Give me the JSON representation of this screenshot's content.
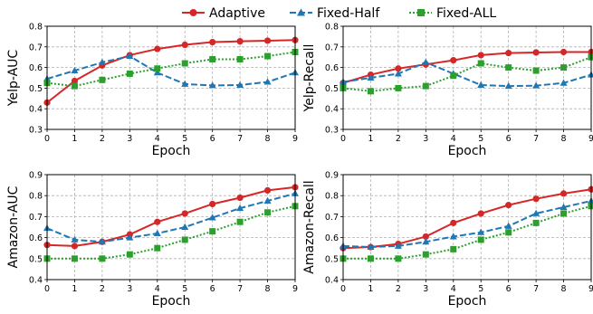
{
  "legend": {
    "placement": "top-center",
    "items": [
      {
        "label": "Adaptive",
        "color": "#d62728",
        "marker": "circle"
      },
      {
        "label": "Fixed-Half",
        "color": "#1f77b4",
        "marker": "triangle"
      },
      {
        "label": "Fixed-ALL",
        "color": "#2ca02c",
        "marker": "square"
      }
    ]
  },
  "chart_data": [
    {
      "type": "line",
      "xlabel": "Epoch",
      "ylabel": "Yelp-AUC",
      "x": [
        0,
        1,
        2,
        3,
        4,
        5,
        6,
        7,
        8,
        9
      ],
      "xticks": [
        0,
        1,
        2,
        3,
        4,
        5,
        6,
        7,
        8,
        9
      ],
      "ylim": [
        0.3,
        0.8
      ],
      "yticks": [
        0.3,
        0.4,
        0.5,
        0.6,
        0.7,
        0.8
      ],
      "grid": true,
      "series": [
        {
          "name": "Adaptive",
          "values": [
            0.43,
            0.535,
            0.61,
            0.66,
            0.69,
            0.71,
            0.723,
            0.727,
            0.73,
            0.733
          ]
        },
        {
          "name": "Fixed-Half",
          "values": [
            0.545,
            0.585,
            0.625,
            0.655,
            0.575,
            0.52,
            0.513,
            0.515,
            0.53,
            0.575
          ]
        },
        {
          "name": "Fixed-ALL",
          "values": [
            0.525,
            0.51,
            0.54,
            0.57,
            0.595,
            0.62,
            0.64,
            0.64,
            0.655,
            0.675
          ]
        }
      ]
    },
    {
      "type": "line",
      "xlabel": "Epoch",
      "ylabel": "Yelp-Recall",
      "x": [
        0,
        1,
        2,
        3,
        4,
        5,
        6,
        7,
        8,
        9
      ],
      "xticks": [
        0,
        1,
        2,
        3,
        4,
        5,
        6,
        7,
        8,
        9
      ],
      "ylim": [
        0.3,
        0.8
      ],
      "yticks": [
        0.3,
        0.4,
        0.5,
        0.6,
        0.7,
        0.8
      ],
      "grid": true,
      "series": [
        {
          "name": "Adaptive",
          "values": [
            0.525,
            0.565,
            0.595,
            0.615,
            0.635,
            0.66,
            0.67,
            0.673,
            0.675,
            0.675
          ]
        },
        {
          "name": "Fixed-Half",
          "values": [
            0.53,
            0.55,
            0.57,
            0.625,
            0.57,
            0.515,
            0.51,
            0.512,
            0.525,
            0.565
          ]
        },
        {
          "name": "Fixed-ALL",
          "values": [
            0.5,
            0.485,
            0.5,
            0.51,
            0.56,
            0.62,
            0.6,
            0.585,
            0.6,
            0.65
          ]
        }
      ]
    },
    {
      "type": "line",
      "xlabel": "Epoch",
      "ylabel": "Amazon-AUC",
      "x": [
        0,
        1,
        2,
        3,
        4,
        5,
        6,
        7,
        8,
        9
      ],
      "xticks": [
        0,
        1,
        2,
        3,
        4,
        5,
        6,
        7,
        8,
        9
      ],
      "ylim": [
        0.4,
        0.9
      ],
      "yticks": [
        0.4,
        0.5,
        0.6,
        0.7,
        0.8,
        0.9
      ],
      "grid": true,
      "series": [
        {
          "name": "Adaptive",
          "values": [
            0.565,
            0.56,
            0.58,
            0.615,
            0.675,
            0.715,
            0.76,
            0.79,
            0.825,
            0.84
          ]
        },
        {
          "name": "Fixed-Half",
          "values": [
            0.645,
            0.59,
            0.58,
            0.6,
            0.62,
            0.65,
            0.695,
            0.74,
            0.775,
            0.81
          ]
        },
        {
          "name": "Fixed-ALL",
          "values": [
            0.5,
            0.5,
            0.5,
            0.52,
            0.55,
            0.59,
            0.63,
            0.675,
            0.72,
            0.75
          ]
        }
      ]
    },
    {
      "type": "line",
      "xlabel": "Epoch",
      "ylabel": "Amazon-Recall",
      "x": [
        0,
        1,
        2,
        3,
        4,
        5,
        6,
        7,
        8,
        9
      ],
      "xticks": [
        0,
        1,
        2,
        3,
        4,
        5,
        6,
        7,
        8,
        9
      ],
      "ylim": [
        0.4,
        0.9
      ],
      "yticks": [
        0.4,
        0.5,
        0.6,
        0.7,
        0.8,
        0.9
      ],
      "grid": true,
      "series": [
        {
          "name": "Adaptive",
          "values": [
            0.55,
            0.555,
            0.57,
            0.605,
            0.67,
            0.715,
            0.755,
            0.785,
            0.81,
            0.83
          ]
        },
        {
          "name": "Fixed-Half",
          "values": [
            0.56,
            0.555,
            0.56,
            0.58,
            0.605,
            0.625,
            0.655,
            0.715,
            0.745,
            0.775
          ]
        },
        {
          "name": "Fixed-ALL",
          "values": [
            0.5,
            0.5,
            0.5,
            0.52,
            0.545,
            0.59,
            0.625,
            0.67,
            0.715,
            0.75
          ]
        }
      ]
    }
  ]
}
